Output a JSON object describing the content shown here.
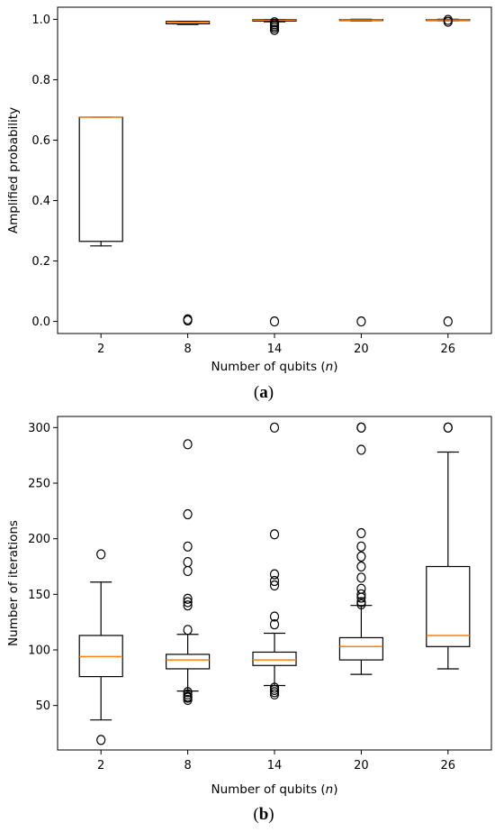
{
  "chart_data": [
    {
      "type": "box",
      "panel": "a",
      "panel_label": {
        "open": "(",
        "letter": "a",
        "close": ")"
      },
      "xlabel": "Number of qubits (n)",
      "ylabel": "Amplified probability",
      "categories": [
        "2",
        "8",
        "14",
        "20",
        "26"
      ],
      "yticks": [
        "0.0",
        "0.2",
        "0.4",
        "0.6",
        "0.8",
        "1.0"
      ],
      "ylim": [
        -0.04,
        1.04
      ],
      "boxes": [
        {
          "x": "2",
          "whislo": 0.25,
          "q1": 0.265,
          "median": 0.676,
          "q3": 0.676,
          "whishi": 0.676,
          "fliers": []
        },
        {
          "x": "8",
          "whislo": 0.983,
          "q1": 0.985,
          "median": 0.99,
          "q3": 0.993,
          "whishi": 0.993,
          "fliers": [
            0.003,
            0.007
          ]
        },
        {
          "x": "14",
          "whislo": 0.992,
          "q1": 0.994,
          "median": 0.997,
          "q3": 0.999,
          "whishi": 0.999,
          "fliers": [
            0.0,
            0.965,
            0.972,
            0.978,
            0.984,
            0.99
          ]
        },
        {
          "x": "20",
          "whislo": 0.995,
          "q1": 0.996,
          "median": 0.998,
          "q3": 0.999,
          "whishi": 1.0,
          "fliers": [
            0.0
          ]
        },
        {
          "x": "26",
          "whislo": 0.996,
          "q1": 0.997,
          "median": 0.998,
          "q3": 0.999,
          "whishi": 1.0,
          "fliers": [
            0.0,
            0.992,
            0.998
          ]
        }
      ],
      "median_color": "#ff7f0e",
      "box_color": "#000000"
    },
    {
      "type": "box",
      "panel": "b",
      "panel_label": {
        "open": "(",
        "letter": "b",
        "close": ")"
      },
      "xlabel": "Number of qubits (n)",
      "ylabel": "Number of iterations",
      "categories": [
        "2",
        "8",
        "14",
        "20",
        "26"
      ],
      "yticks": [
        "50",
        "100",
        "150",
        "200",
        "250",
        "300"
      ],
      "ylim": [
        10,
        310
      ],
      "boxes": [
        {
          "x": "2",
          "whislo": 37,
          "q1": 76,
          "median": 94,
          "q3": 113,
          "whishi": 161,
          "fliers": [
            186,
            19
          ]
        },
        {
          "x": "8",
          "whislo": 63,
          "q1": 83,
          "median": 91,
          "q3": 96,
          "whishi": 114,
          "fliers": [
            285,
            222,
            193,
            179,
            171,
            146,
            143,
            140,
            118,
            62,
            60,
            58,
            57,
            55
          ]
        },
        {
          "x": "14",
          "whislo": 68,
          "q1": 86,
          "median": 91,
          "q3": 98,
          "whishi": 115,
          "fliers": [
            300,
            204,
            168,
            162,
            158,
            130,
            123,
            66,
            64,
            62,
            60
          ]
        },
        {
          "x": "20",
          "whislo": 78,
          "q1": 91,
          "median": 103,
          "q3": 111,
          "whishi": 140,
          "fliers": [
            300,
            300,
            280,
            205,
            193,
            184,
            175,
            165,
            155,
            150,
            147,
            143,
            141
          ]
        },
        {
          "x": "26",
          "whislo": 83,
          "q1": 103,
          "median": 113,
          "q3": 175,
          "whishi": 278,
          "fliers": [
            300,
            300
          ]
        }
      ],
      "median_color": "#ff7f0e",
      "box_color": "#000000"
    }
  ]
}
